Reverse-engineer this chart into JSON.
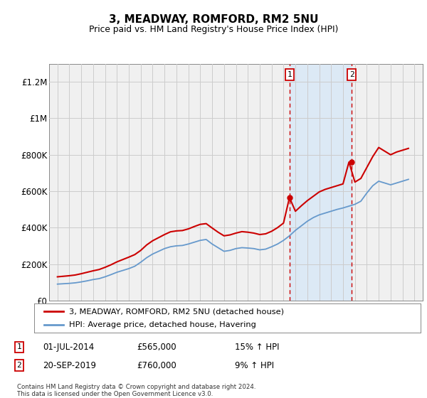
{
  "title": "3, MEADWAY, ROMFORD, RM2 5NU",
  "subtitle": "Price paid vs. HM Land Registry's House Price Index (HPI)",
  "footer": "Contains HM Land Registry data © Crown copyright and database right 2024.\nThis data is licensed under the Open Government Licence v3.0.",
  "legend_line1": "3, MEADWAY, ROMFORD, RM2 5NU (detached house)",
  "legend_line2": "HPI: Average price, detached house, Havering",
  "sale1_date": "01-JUL-2014",
  "sale1_price": "£565,000",
  "sale1_pct": "15% ↑ HPI",
  "sale2_date": "20-SEP-2019",
  "sale2_price": "£760,000",
  "sale2_pct": "9% ↑ HPI",
  "red_line_color": "#cc0000",
  "blue_line_color": "#6699cc",
  "shade_color": "#dce9f5",
  "dashed_line_color": "#cc0000",
  "grid_color": "#cccccc",
  "background_color": "#ffffff",
  "plot_bg_color": "#f0f0f0",
  "ylim": [
    0,
    1300000
  ],
  "yticks": [
    0,
    200000,
    400000,
    600000,
    800000,
    1000000,
    1200000
  ],
  "ytick_labels": [
    "£0",
    "£200K",
    "£400K",
    "£600K",
    "£800K",
    "£1M",
    "£1.2M"
  ],
  "sale1_x": 2014.5,
  "sale2_x": 2019.72,
  "sale1_y": 565000,
  "sale2_y": 760000,
  "hpi_years": [
    1995,
    1995.5,
    1996,
    1996.5,
    1997,
    1997.5,
    1998,
    1998.5,
    1999,
    1999.5,
    2000,
    2000.5,
    2001,
    2001.5,
    2002,
    2002.5,
    2003,
    2003.5,
    2004,
    2004.5,
    2005,
    2005.5,
    2006,
    2006.5,
    2007,
    2007.5,
    2008,
    2008.5,
    2009,
    2009.5,
    2010,
    2010.5,
    2011,
    2011.5,
    2012,
    2012.5,
    2013,
    2013.5,
    2014,
    2014.5,
    2015,
    2015.5,
    2016,
    2016.5,
    2017,
    2017.5,
    2018,
    2018.5,
    2019,
    2019.5,
    2020,
    2020.5,
    2021,
    2021.5,
    2022,
    2022.5,
    2023,
    2023.5,
    2024,
    2024.5
  ],
  "hpi_values": [
    90000,
    92000,
    94000,
    97000,
    102000,
    108000,
    115000,
    120000,
    130000,
    142000,
    155000,
    165000,
    175000,
    188000,
    210000,
    235000,
    255000,
    270000,
    285000,
    295000,
    300000,
    302000,
    310000,
    320000,
    330000,
    335000,
    310000,
    290000,
    270000,
    275000,
    285000,
    290000,
    288000,
    285000,
    278000,
    282000,
    295000,
    310000,
    330000,
    355000,
    385000,
    410000,
    435000,
    455000,
    470000,
    480000,
    490000,
    500000,
    508000,
    518000,
    528000,
    545000,
    590000,
    630000,
    655000,
    645000,
    635000,
    645000,
    655000,
    665000
  ],
  "red_values": [
    130000,
    133000,
    136000,
    140000,
    147000,
    155000,
    163000,
    170000,
    182000,
    196000,
    212000,
    225000,
    238000,
    252000,
    275000,
    305000,
    328000,
    345000,
    362000,
    377000,
    382000,
    384000,
    393000,
    406000,
    418000,
    422000,
    398000,
    375000,
    355000,
    360000,
    370000,
    378000,
    375000,
    370000,
    362000,
    366000,
    380000,
    400000,
    425000,
    565000,
    490000,
    520000,
    548000,
    572000,
    596000,
    610000,
    620000,
    630000,
    640000,
    760000,
    650000,
    670000,
    730000,
    790000,
    840000,
    820000,
    800000,
    815000,
    825000,
    835000
  ],
  "xlim_left": 1994.3,
  "xlim_right": 2025.7
}
